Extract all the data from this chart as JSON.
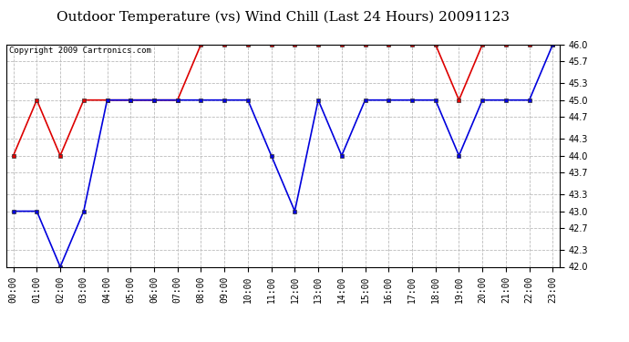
{
  "title": "Outdoor Temperature (vs) Wind Chill (Last 24 Hours) 20091123",
  "copyright": "Copyright 2009 Cartronics.com",
  "hours": [
    "00:00",
    "01:00",
    "02:00",
    "03:00",
    "04:00",
    "05:00",
    "06:00",
    "07:00",
    "08:00",
    "09:00",
    "10:00",
    "11:00",
    "12:00",
    "13:00",
    "14:00",
    "15:00",
    "16:00",
    "17:00",
    "18:00",
    "19:00",
    "20:00",
    "21:00",
    "22:00",
    "23:00"
  ],
  "red_data": [
    44.0,
    45.0,
    44.0,
    45.0,
    45.0,
    45.0,
    45.0,
    45.0,
    46.0,
    46.0,
    46.0,
    46.0,
    46.0,
    46.0,
    46.0,
    46.0,
    46.0,
    46.0,
    46.0,
    45.0,
    46.0,
    46.0,
    46.0,
    46.0
  ],
  "blue_data": [
    43.0,
    43.0,
    42.0,
    43.0,
    45.0,
    45.0,
    45.0,
    45.0,
    45.0,
    45.0,
    45.0,
    44.0,
    43.0,
    45.0,
    44.0,
    45.0,
    45.0,
    45.0,
    45.0,
    44.0,
    45.0,
    45.0,
    45.0,
    46.0
  ],
  "red_color": "#dd0000",
  "blue_color": "#0000dd",
  "bg_color": "#ffffff",
  "grid_color": "#bbbbbb",
  "ylim": [
    42.0,
    46.0
  ],
  "yticks": [
    42.0,
    42.3,
    42.7,
    43.0,
    43.3,
    43.7,
    44.0,
    44.3,
    44.7,
    45.0,
    45.3,
    45.7,
    46.0
  ],
  "title_fontsize": 11,
  "copyright_fontsize": 6.5,
  "tick_fontsize": 7,
  "marker_size": 3
}
